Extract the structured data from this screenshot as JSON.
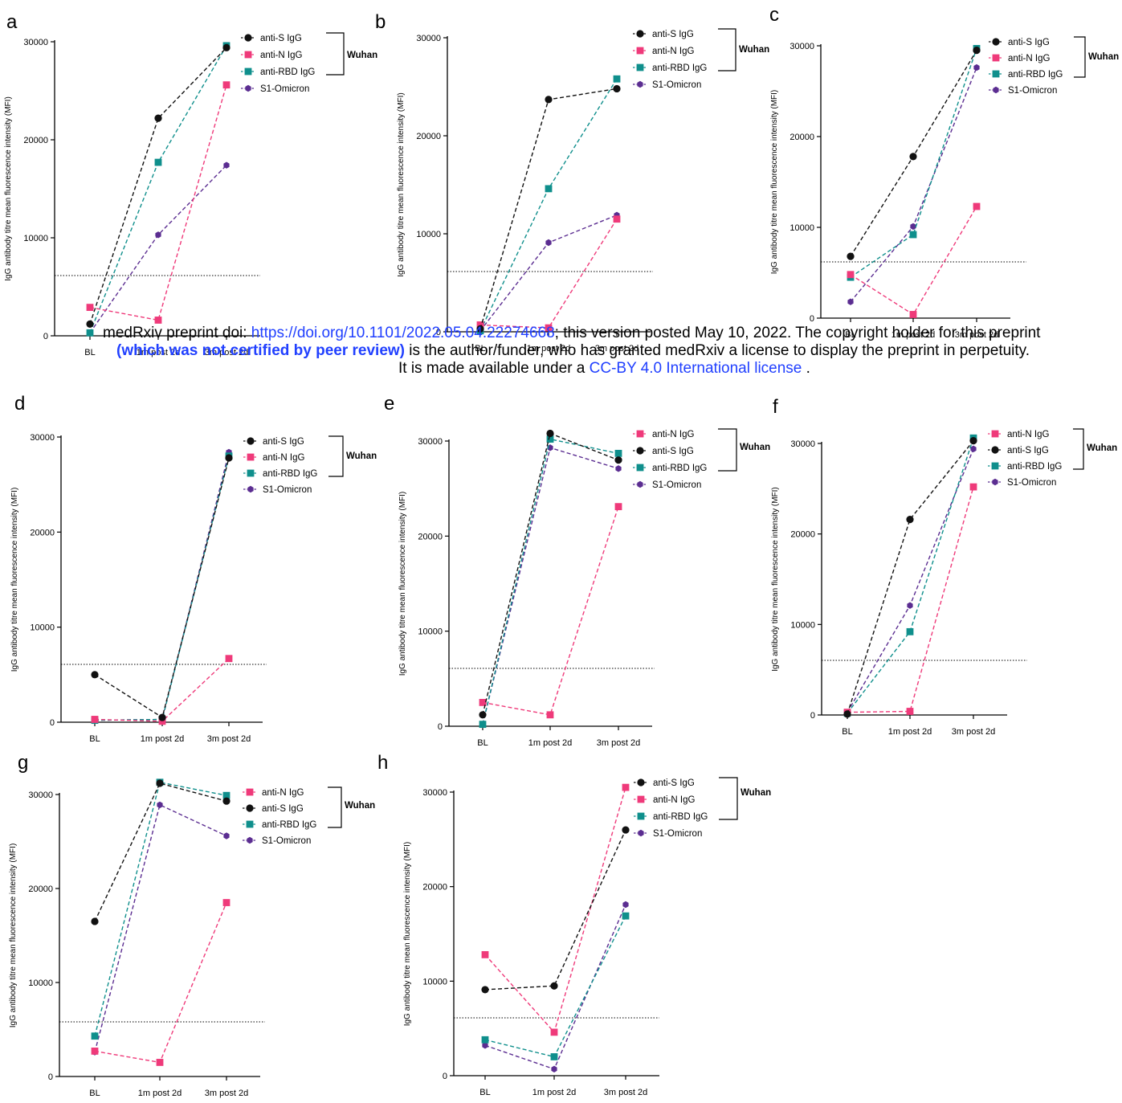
{
  "colors": {
    "anti_S": "#111111",
    "anti_N": "#ef3a7a",
    "anti_RBD": "#0f8f8c",
    "S1_Omicron": "#5b2d91"
  },
  "marker_shapes": {
    "anti-S IgG": "circle",
    "anti-N IgG": "square",
    "anti-RBD IgG": "square",
    "S1-Omicron": "hexagon"
  },
  "chart_data": [
    {
      "panel": "a",
      "type": "line",
      "categories": [
        "BL",
        "1m post 2d",
        "3m post 2d"
      ],
      "ylabel": "IgG antibody titre mean fluorescence intensity (MFI)",
      "ylim": [
        0,
        30000
      ],
      "yticks": [
        "0",
        "10000",
        "20000",
        "30000"
      ],
      "threshold": 6000,
      "legend_order": [
        "anti-S IgG",
        "anti-N IgG",
        "anti-RBD IgG",
        "S1-Omicron"
      ],
      "bracket_label": "Wuhan",
      "series": [
        {
          "name": "anti-S IgG",
          "values": [
            1200,
            22200,
            29400
          ]
        },
        {
          "name": "anti-N IgG",
          "values": [
            2900,
            1600,
            25600
          ]
        },
        {
          "name": "anti-RBD IgG",
          "values": [
            300,
            17700,
            29600
          ]
        },
        {
          "name": "S1-Omicron",
          "values": [
            300,
            10300,
            17400
          ]
        }
      ]
    },
    {
      "panel": "b",
      "type": "line",
      "categories": [
        "BL",
        "1m post 2d",
        "3m post 2d"
      ],
      "ylabel": "IgG antibody titre mean fluorescence intensity (MFI)",
      "ylim": [
        0,
        30000
      ],
      "yticks": [
        "0",
        "10000",
        "20000",
        "30000"
      ],
      "threshold": 6000,
      "legend_order": [
        "anti-S IgG",
        "anti-N IgG",
        "anti-RBD IgG",
        "S1-Omicron"
      ],
      "bracket_label": "Wuhan",
      "series": [
        {
          "name": "anti-S IgG",
          "values": [
            300,
            23700,
            24800
          ]
        },
        {
          "name": "anti-N IgG",
          "values": [
            700,
            400,
            11500
          ]
        },
        {
          "name": "anti-RBD IgG",
          "values": [
            100,
            14600,
            25800
          ]
        },
        {
          "name": "S1-Omicron",
          "values": [
            100,
            9100,
            11900
          ]
        }
      ]
    },
    {
      "panel": "c",
      "type": "line",
      "categories": [
        "BL",
        "1m post 2d",
        "3m post 2d"
      ],
      "ylabel": "IgG antibody titre mean fluorescence intensity (MFI)",
      "ylim": [
        0,
        30000
      ],
      "yticks": [
        "0",
        "10000",
        "20000",
        "30000"
      ],
      "threshold": 6000,
      "legend_order": [
        "anti-S IgG",
        "anti-N IgG",
        "anti-RBD IgG",
        "S1-Omicron"
      ],
      "bracket_label": "Wuhan",
      "series": [
        {
          "name": "anti-S IgG",
          "values": [
            6800,
            17800,
            29500
          ]
        },
        {
          "name": "anti-N IgG",
          "values": [
            4800,
            400,
            12300
          ]
        },
        {
          "name": "anti-RBD IgG",
          "values": [
            4500,
            9200,
            29700
          ]
        },
        {
          "name": "S1-Omicron",
          "values": [
            1800,
            10100,
            27600
          ]
        }
      ]
    },
    {
      "panel": "d",
      "type": "line",
      "categories": [
        "BL",
        "1m post 2d",
        "3m post 2d"
      ],
      "ylabel": "IgG antibody titre mean fluorescence intensity (MFI)",
      "ylim": [
        0,
        30000
      ],
      "yticks": [
        "0",
        "10000",
        "20000",
        "30000"
      ],
      "threshold": 6000,
      "legend_order": [
        "anti-S IgG",
        "anti-N IgG",
        "anti-RBD IgG",
        "S1-Omicron"
      ],
      "bracket_label": "Wuhan",
      "series": [
        {
          "name": "anti-S IgG",
          "values": [
            5000,
            500,
            27800
          ]
        },
        {
          "name": "anti-N IgG",
          "values": [
            300,
            100,
            6700
          ]
        },
        {
          "name": "anti-RBD IgG",
          "values": [
            200,
            300,
            28000
          ]
        },
        {
          "name": "S1-Omicron",
          "values": [
            200,
            300,
            28400
          ]
        }
      ]
    },
    {
      "panel": "e",
      "type": "line",
      "categories": [
        "BL",
        "1m post 2d",
        "3m post 2d"
      ],
      "ylabel": "IgG antibody titre mean fluorescence intensity (MFI)",
      "ylim": [
        0,
        30000
      ],
      "yticks": [
        "0",
        "10000",
        "20000",
        "30000"
      ],
      "threshold": 6000,
      "legend_order": [
        "anti-N IgG",
        "anti-S IgG",
        "anti-RBD IgG",
        "S1-Omicron"
      ],
      "bracket_label": "Wuhan",
      "series": [
        {
          "name": "anti-S IgG",
          "values": [
            1200,
            30800,
            28000
          ]
        },
        {
          "name": "anti-N IgG",
          "values": [
            2500,
            1200,
            23100
          ]
        },
        {
          "name": "anti-RBD IgG",
          "values": [
            200,
            30200,
            28700
          ]
        },
        {
          "name": "S1-Omicron",
          "values": [
            200,
            29300,
            27100
          ]
        }
      ]
    },
    {
      "panel": "f",
      "type": "line",
      "categories": [
        "BL",
        "1m post 2d",
        "3m post 2d"
      ],
      "ylabel": "IgG antibody titre mean fluorescence intensity (MFI)",
      "ylim": [
        0,
        30000
      ],
      "yticks": [
        "0",
        "10000",
        "20000",
        "30000"
      ],
      "threshold": 6000,
      "legend_order": [
        "anti-N IgG",
        "anti-S IgG",
        "anti-RBD IgG",
        "S1-Omicron"
      ],
      "bracket_label": "Wuhan",
      "series": [
        {
          "name": "anti-S IgG",
          "values": [
            100,
            21600,
            30300
          ]
        },
        {
          "name": "anti-N IgG",
          "values": [
            300,
            400,
            25200
          ]
        },
        {
          "name": "anti-RBD IgG",
          "values": [
            200,
            9200,
            30600
          ]
        },
        {
          "name": "S1-Omicron",
          "values": [
            300,
            12100,
            29400
          ]
        }
      ]
    },
    {
      "panel": "g",
      "type": "line",
      "categories": [
        "BL",
        "1m post 2d",
        "3m post 2d"
      ],
      "ylabel": "IgG antibody titre mean fluorescence intensity (MFI)",
      "ylim": [
        0,
        30000
      ],
      "yticks": [
        "0",
        "10000",
        "20000",
        "30000"
      ],
      "threshold": 6000,
      "legend_order": [
        "anti-N IgG",
        "anti-S IgG",
        "anti-RBD IgG",
        "S1-Omicron"
      ],
      "bracket_label": "Wuhan",
      "series": [
        {
          "name": "anti-S IgG",
          "values": [
            16500,
            31200,
            29300
          ]
        },
        {
          "name": "anti-N IgG",
          "values": [
            2700,
            1500,
            18500
          ]
        },
        {
          "name": "anti-RBD IgG",
          "values": [
            4300,
            31300,
            29900
          ]
        },
        {
          "name": "S1-Omicron",
          "values": [
            2600,
            28900,
            25600
          ]
        }
      ]
    },
    {
      "panel": "h",
      "type": "line",
      "categories": [
        "BL",
        "1m post 2d",
        "3m post 2d"
      ],
      "ylabel": "IgG antibody titre mean fluorescence intensity (MFI)",
      "ylim": [
        0,
        30000
      ],
      "yticks": [
        "0",
        "10000",
        "20000",
        "30000"
      ],
      "threshold": 6000,
      "legend_order": [
        "anti-S IgG",
        "anti-N IgG",
        "anti-RBD IgG",
        "S1-Omicron"
      ],
      "bracket_label": "Wuhan",
      "series": [
        {
          "name": "anti-S IgG",
          "values": [
            9100,
            9500,
            26000
          ]
        },
        {
          "name": "anti-N IgG",
          "values": [
            12800,
            4600,
            30500
          ]
        },
        {
          "name": "anti-RBD IgG",
          "values": [
            3800,
            2000,
            16900
          ]
        },
        {
          "name": "S1-Omicron",
          "values": [
            3200,
            700,
            18100
          ]
        }
      ]
    }
  ],
  "watermark": {
    "line1_prefix": "medRxiv preprint doi: ",
    "line1_link": "https://doi.org/10.1101/2022.05.04.22274668",
    "line1_suffix": "; this version posted May 10, 2022. The copyright holder for this preprint",
    "line2_bold": "(which was not certified by peer review)",
    "line2_suffix": " is the author/funder, who has granted medRxiv a license to display the preprint in perpetuity.",
    "line3_prefix": "It is made available under a ",
    "line3_link": "CC-BY 4.0 International license",
    "line3_suffix": " ."
  }
}
